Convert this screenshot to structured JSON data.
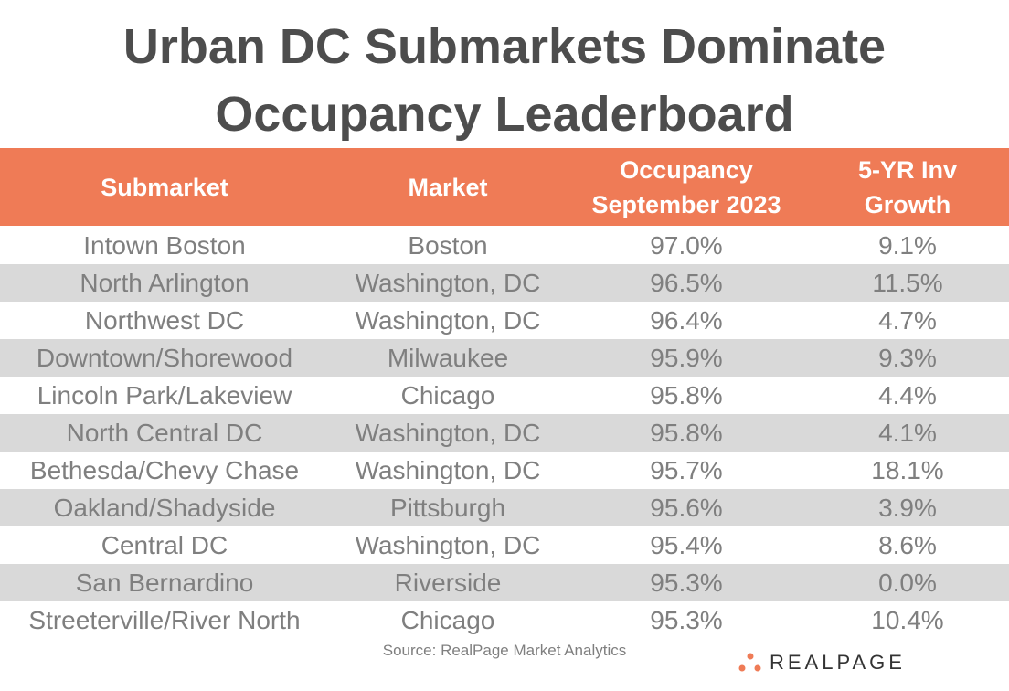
{
  "title_lines": [
    "Urban DC Submarkets Dominate",
    "Occupancy Leaderboard"
  ],
  "chart_data": {
    "type": "table",
    "title": "Urban DC Submarkets Dominate Occupancy Leaderboard",
    "columns": [
      "Submarket",
      "Market",
      "Occupancy September 2023",
      "5-YR Inv Growth"
    ],
    "header_lines": [
      [
        "Submarket"
      ],
      [
        "Market"
      ],
      [
        "Occupancy",
        "September 2023"
      ],
      [
        "5-YR Inv",
        "Growth"
      ]
    ],
    "rows": [
      [
        "Intown Boston",
        "Boston",
        "97.0%",
        "9.1%"
      ],
      [
        "North Arlington",
        "Washington, DC",
        "96.5%",
        "11.5%"
      ],
      [
        "Northwest DC",
        "Washington, DC",
        "96.4%",
        "4.7%"
      ],
      [
        "Downtown/Shorewood",
        "Milwaukee",
        "95.9%",
        "9.3%"
      ],
      [
        "Lincoln Park/Lakeview",
        "Chicago",
        "95.8%",
        "4.4%"
      ],
      [
        "North Central DC",
        "Washington, DC",
        "95.8%",
        "4.1%"
      ],
      [
        "Bethesda/Chevy Chase",
        "Washington, DC",
        "95.7%",
        "18.1%"
      ],
      [
        "Oakland/Shadyside",
        "Pittsburgh",
        "95.6%",
        "3.9%"
      ],
      [
        "Central DC",
        "Washington, DC",
        "95.4%",
        "8.6%"
      ],
      [
        "San Bernardino",
        "Riverside",
        "95.3%",
        "0.0%"
      ],
      [
        "Streeterville/River North",
        "Chicago",
        "95.3%",
        "10.4%"
      ]
    ]
  },
  "source": "Source: RealPage Market Analytics",
  "logo": {
    "text": "REALPAGE",
    "color": "#ef7b56"
  },
  "colors": {
    "header": "#ef7b56",
    "stripe": "#d9d9d9",
    "text": "#7f7f7f"
  }
}
